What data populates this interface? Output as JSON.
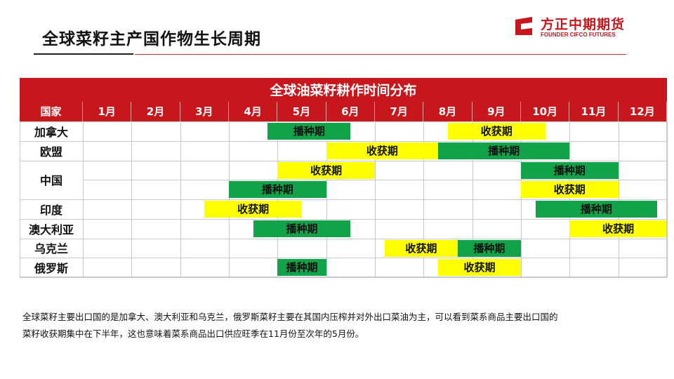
{
  "slide": {
    "title": "全球菜籽主产国作物生长周期"
  },
  "logo": {
    "name_cn": "方正中期期货",
    "name_en": "FOUNDER CIFCO FUTURES",
    "brand_color": "#c8161d"
  },
  "table": {
    "banner": "全球油菜籽耕作时间分布",
    "country_header": "国家",
    "months": [
      "1月",
      "2月",
      "3月",
      "4月",
      "5月",
      "6月",
      "7月",
      "8月",
      "9月",
      "10月",
      "11月",
      "12月"
    ],
    "colors": {
      "header": "#c8161d",
      "sow": "#12a34a",
      "harvest": "#ffff00",
      "grid": "#c9c9c9"
    },
    "countries": [
      {
        "name": "加拿大",
        "rows": [
          [
            {
              "label": "播种期",
              "type": "sow",
              "start_month": 4.8,
              "end_month": 6.5
            },
            {
              "label": "收获期",
              "type": "harvest",
              "start_month": 8.5,
              "end_month": 10.5
            }
          ]
        ]
      },
      {
        "name": "欧盟",
        "rows": [
          [
            {
              "label": "收获期",
              "type": "harvest",
              "start_month": 6.0,
              "end_month": 8.3
            },
            {
              "label": "播种期",
              "type": "sow",
              "start_month": 8.3,
              "end_month": 11.0
            }
          ]
        ]
      },
      {
        "name": "中国",
        "rows": [
          [
            {
              "label": "收获期",
              "type": "harvest",
              "start_month": 5.0,
              "end_month": 7.0
            },
            {
              "label": "播种期",
              "type": "sow",
              "start_month": 10.0,
              "end_month": 12.0
            }
          ],
          [
            {
              "label": "播种期",
              "type": "sow",
              "start_month": 4.0,
              "end_month": 6.0
            },
            {
              "label": "收获期",
              "type": "harvest",
              "start_month": 10.0,
              "end_month": 12.0
            }
          ]
        ]
      },
      {
        "name": "印度",
        "rows": [
          [
            {
              "label": "收获期",
              "type": "harvest",
              "start_month": 3.5,
              "end_month": 5.5
            },
            {
              "label": "播种期",
              "type": "sow",
              "start_month": 10.3,
              "end_month": 12.8
            }
          ]
        ]
      },
      {
        "name": "澳大利亚",
        "rows": [
          [
            {
              "label": "播种期",
              "type": "sow",
              "start_month": 4.5,
              "end_month": 6.5
            },
            {
              "label": "收获期",
              "type": "harvest",
              "start_month": 11.0,
              "end_month": 13.0
            }
          ]
        ]
      },
      {
        "name": "乌克兰",
        "rows": [
          [
            {
              "label": "收获期",
              "type": "harvest",
              "start_month": 7.2,
              "end_month": 8.7
            },
            {
              "label": "播种期",
              "type": "sow",
              "start_month": 8.7,
              "end_month": 10.0
            }
          ]
        ]
      },
      {
        "name": "俄罗斯",
        "rows": [
          [
            {
              "label": "播种期",
              "type": "sow",
              "start_month": 5.0,
              "end_month": 6.0
            },
            {
              "label": "收获期",
              "type": "harvest",
              "start_month": 8.3,
              "end_month": 10.0
            }
          ]
        ]
      }
    ]
  },
  "note": {
    "line1": "全球菜籽主要出口国的是加拿大、澳大利亚和乌克兰，俄罗斯菜籽主要在其国内压榨并对外出口菜油为主，可以看到菜系商品主要出口国的",
    "line2": "菜籽收获期集中在下半年，这也意味着菜系商品出口供应旺季在11月份至次年的5月份。"
  }
}
